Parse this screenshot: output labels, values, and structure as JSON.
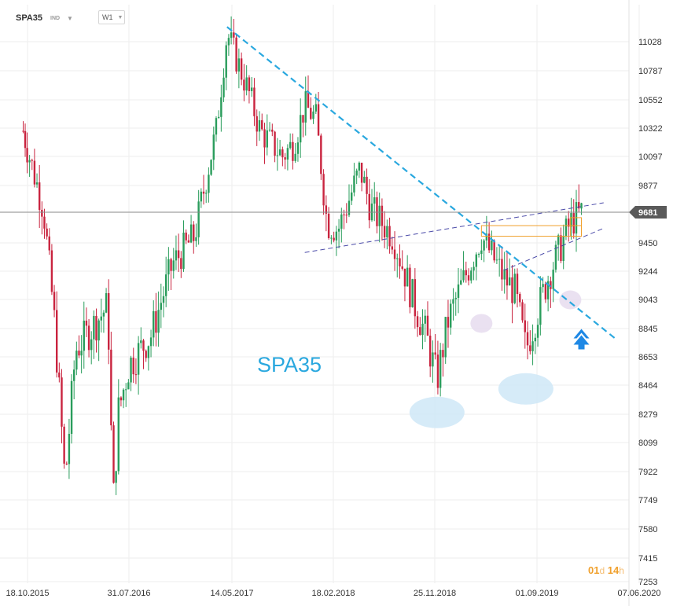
{
  "header": {
    "symbol": "SPA35",
    "instrument_type": "IND",
    "timeframe": "W1"
  },
  "watermark": "SPA35",
  "timer": {
    "days": "01",
    "days_unit": "d",
    "hours": "14",
    "hours_unit": "h"
  },
  "colors": {
    "up": "#2a9d5c",
    "down": "#c9243f",
    "trendline": "#2aa8df",
    "channel": "#4a4aa8",
    "resistance_box": "#f0a02c",
    "current_price_tag": "#5a5a5a",
    "highlight_blue": "#cfe8f7",
    "highlight_purple": "#e6dcef",
    "signal_arrow": "#1e88e5"
  },
  "chart_data": {
    "type": "candlestick",
    "title": "SPA35",
    "timeframe": "W1",
    "x_tick_labels": [
      "18.10.2015",
      "31.07.2016",
      "14.05.2017",
      "18.02.2018",
      "25.11.2018",
      "01.09.2019",
      "07.06.2020"
    ],
    "y_tick_labels": [
      "11028",
      "10787",
      "10552",
      "10322",
      "10097",
      "9877",
      "9681",
      "9450",
      "9244",
      "9043",
      "8845",
      "8653",
      "8464",
      "8279",
      "8099",
      "7922",
      "7749",
      "7580",
      "7415",
      "7253"
    ],
    "ylim": [
      7200,
      11300
    ],
    "current_price": 9681,
    "grid": true,
    "price_path": [
      [
        "2015-10",
        10300
      ],
      [
        "2015-12",
        9700
      ],
      [
        "2016-01",
        8900
      ],
      [
        "2016-02",
        7850
      ],
      [
        "2016-03",
        8700
      ],
      [
        "2016-05",
        8900
      ],
      [
        "2016-06",
        9000
      ],
      [
        "2016-06b",
        7700
      ],
      [
        "2016-07",
        8300
      ],
      [
        "2016-08",
        8600
      ],
      [
        "2016-09",
        8700
      ],
      [
        "2016-10",
        8800
      ],
      [
        "2016-12",
        9300
      ],
      [
        "2017-02",
        9500
      ],
      [
        "2017-04",
        10300
      ],
      [
        "2017-05",
        11100
      ],
      [
        "2017-07",
        10600
      ],
      [
        "2017-08",
        10300
      ],
      [
        "2017-10",
        10100
      ],
      [
        "2017-11",
        10200
      ],
      [
        "2017-12",
        10500
      ],
      [
        "2018-01",
        10400
      ],
      [
        "2018-02",
        9600
      ],
      [
        "2018-03",
        9550
      ],
      [
        "2018-05",
        10000
      ],
      [
        "2018-06",
        9700
      ],
      [
        "2018-08",
        9500
      ],
      [
        "2018-10",
        9000
      ],
      [
        "2018-11",
        8800
      ],
      [
        "2018-12",
        8500
      ],
      [
        "2019-01",
        8900
      ],
      [
        "2019-03",
        9300
      ],
      [
        "2019-04",
        9500
      ],
      [
        "2019-06",
        9200
      ],
      [
        "2019-07",
        9100
      ],
      [
        "2019-08",
        8700
      ],
      [
        "2019-09",
        8950
      ],
      [
        "2019-10",
        9200
      ],
      [
        "2019-11",
        9400
      ],
      [
        "2019-12",
        9600
      ],
      [
        "2020-01",
        9681
      ]
    ],
    "annotations": [
      {
        "type": "trendline",
        "from": [
          "2017-05",
          11150
        ],
        "to": [
          "2020-04",
          8780
        ],
        "style": "dashed"
      },
      {
        "type": "channel_line",
        "from": [
          "2017-12",
          9380
        ],
        "to": [
          "2020-03",
          9750
        ],
        "style": "dashed"
      },
      {
        "type": "channel_line",
        "from": [
          "2019-06",
          9250
        ],
        "to": [
          "2020-03",
          9560
        ],
        "style": "dashed"
      },
      {
        "type": "resistance_box",
        "x_range": [
          "2019-04",
          "2020-01"
        ],
        "y_range": [
          9500,
          9580
        ]
      },
      {
        "type": "resistance_box",
        "x_range": [
          "2019-12",
          "2020-01"
        ],
        "y_range": [
          9500,
          9640
        ]
      },
      {
        "type": "highlight",
        "shape": "ellipse",
        "at": [
          "2018-12",
          8290
        ],
        "color": "blue"
      },
      {
        "type": "highlight",
        "shape": "ellipse",
        "at": [
          "2019-08",
          8440
        ],
        "color": "blue"
      },
      {
        "type": "highlight",
        "shape": "ellipse",
        "at": [
          "2019-04",
          8880
        ],
        "color": "purple"
      },
      {
        "type": "highlight",
        "shape": "ellipse",
        "at": [
          "2019-12",
          9040
        ],
        "color": "purple"
      },
      {
        "type": "arrow",
        "direction": "up",
        "at": [
          "2020-01",
          8800
        ]
      }
    ]
  }
}
